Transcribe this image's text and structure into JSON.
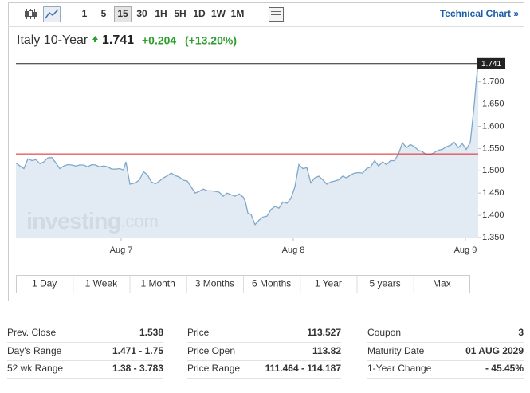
{
  "toolbar": {
    "intervals": [
      "1",
      "5",
      "15",
      "30",
      "1H",
      "5H",
      "1D",
      "1W",
      "1M"
    ],
    "active_interval": 2,
    "link": "Technical Chart »"
  },
  "header": {
    "name": "Italy 10-Year",
    "price": "1.741",
    "change": "+0.204",
    "change_pct": "(+13.20%)"
  },
  "watermark": [
    "investing",
    ".com"
  ],
  "chart_data": {
    "type": "area",
    "color": "#7fa7c9",
    "fill": "#dde8f1",
    "x": [
      -14.67,
      -14.11,
      -13.56,
      -13,
      -12.44,
      -11.89,
      -11.33,
      -10.78,
      -10.22,
      -9.67,
      -9.11,
      -8.56,
      -8,
      -7.44,
      -6.89,
      -6.33,
      -5.78,
      -5.22,
      -4.67,
      -4.11,
      -3.56,
      -3,
      -2.44,
      -1.89,
      -1.33,
      -0.78,
      -0.22,
      0.33,
      0.67,
      1.22,
      2,
      2.56,
      3.11,
      3.67,
      4.22,
      4.78,
      5.33,
      5.89,
      6.44,
      7,
      7.56,
      8.11,
      8.67,
      9.22,
      9.78,
      10.33,
      10.89,
      11.44,
      12,
      12.56,
      13.11,
      13.67,
      14.22,
      14.78,
      15.33,
      15.89,
      16.44,
      17,
      17.33,
      17.67,
      18.11,
      18.67,
      19.22,
      19.78,
      20.33,
      20.89,
      21.44,
      22,
      22.56,
      23.11,
      23.67,
      24.22,
      24.78,
      25.33,
      25.89,
      26.44,
      27,
      27.56,
      28.11,
      28.67,
      29.22,
      29.78,
      30.33,
      30.89,
      31.44,
      32,
      32.56,
      33.11,
      33.67,
      34.22,
      34.78,
      35.33,
      35.89,
      36.44,
      37,
      37.56,
      38.11,
      38.67,
      39.22,
      39.78,
      40.33,
      40.89,
      41.44,
      42,
      42.56,
      43.11,
      43.67,
      44.22,
      44.78,
      45.33,
      45.89,
      46.44,
      47,
      47.56,
      48.11,
      48.67,
      49.22,
      49.56,
      49.78
    ],
    "values": [
      1.518,
      1.511,
      1.505,
      1.527,
      1.523,
      1.525,
      1.516,
      1.52,
      1.529,
      1.53,
      1.518,
      1.505,
      1.511,
      1.514,
      1.513,
      1.511,
      1.513,
      1.513,
      1.509,
      1.514,
      1.513,
      1.509,
      1.511,
      1.509,
      1.504,
      1.504,
      1.505,
      1.502,
      1.52,
      1.47,
      1.473,
      1.48,
      1.498,
      1.491,
      1.475,
      1.471,
      1.477,
      1.484,
      1.489,
      1.495,
      1.489,
      1.486,
      1.479,
      1.477,
      1.463,
      1.45,
      1.454,
      1.459,
      1.455,
      1.455,
      1.454,
      1.452,
      1.443,
      1.45,
      1.446,
      1.443,
      1.448,
      1.441,
      1.43,
      1.405,
      1.402,
      1.379,
      1.389,
      1.396,
      1.398,
      1.413,
      1.42,
      1.416,
      1.43,
      1.427,
      1.438,
      1.464,
      1.514,
      1.505,
      1.507,
      1.473,
      1.484,
      1.488,
      1.48,
      1.47,
      1.475,
      1.477,
      1.48,
      1.488,
      1.484,
      1.491,
      1.495,
      1.496,
      1.495,
      1.505,
      1.509,
      1.523,
      1.511,
      1.52,
      1.514,
      1.523,
      1.523,
      1.538,
      1.563,
      1.552,
      1.559,
      1.554,
      1.546,
      1.543,
      1.536,
      1.536,
      1.541,
      1.546,
      1.548,
      1.554,
      1.557,
      1.564,
      1.552,
      1.561,
      1.548,
      1.563,
      1.648,
      1.711,
      1.741
    ],
    "xlim": [
      -14.67,
      49.78
    ],
    "xticks": [
      {
        "value": 0,
        "label": "Aug 7"
      },
      {
        "value": 24,
        "label": "Aug 8"
      },
      {
        "value": 48,
        "label": "Aug 9"
      }
    ],
    "ylim": [
      1.35,
      1.755
    ],
    "yticks": [
      {
        "value": 1.35,
        "label": "1.350"
      },
      {
        "value": 1.4,
        "label": "1.400"
      },
      {
        "value": 1.45,
        "label": "1.450"
      },
      {
        "value": 1.5,
        "label": "1.500"
      },
      {
        "value": 1.55,
        "label": "1.550"
      },
      {
        "value": 1.6,
        "label": "1.600"
      },
      {
        "value": 1.65,
        "label": "1.650"
      },
      {
        "value": 1.7,
        "label": "1.700"
      }
    ],
    "last_value": 1.741,
    "reference_line": 1.538,
    "reference_color": "#d22",
    "last_line_color": "#222"
  },
  "ranges": [
    "1 Day",
    "1 Week",
    "1 Month",
    "3 Months",
    "6 Months",
    "1 Year",
    "5 years",
    "Max"
  ],
  "stats": [
    [
      [
        "Prev. Close",
        "1.538"
      ],
      [
        "Day's Range",
        "1.471 - 1.75"
      ],
      [
        "52 wk Range",
        "1.38 - 3.783"
      ]
    ],
    [
      [
        "Price",
        "113.527"
      ],
      [
        "Price Open",
        "113.82"
      ],
      [
        "Price Range",
        "111.464 - 114.187"
      ]
    ],
    [
      [
        "Coupon",
        "3"
      ],
      [
        "Maturity Date",
        "01 AUG 2029"
      ],
      [
        "1-Year Change",
        "- 45.45%"
      ]
    ]
  ]
}
